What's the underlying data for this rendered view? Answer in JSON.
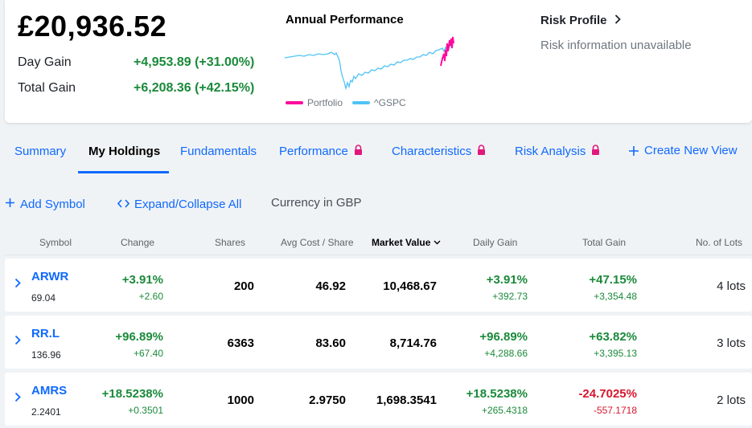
{
  "summary": {
    "total_value": "£20,936.52",
    "day_gain_label": "Day Gain",
    "day_gain_value": "+4,953.89 (+31.00%)",
    "total_gain_label": "Total Gain",
    "total_gain_value": "+6,208.36 (+42.15%)"
  },
  "performance": {
    "title": "Annual Performance",
    "legend": [
      {
        "label": "Portfolio",
        "color": "#ff0a9c"
      },
      {
        "label": "^GSPC",
        "color": "#4fc3f7"
      }
    ]
  },
  "risk": {
    "title": "Risk Profile",
    "message": "Risk information unavailable"
  },
  "tabs": [
    {
      "label": "Summary",
      "locked": false
    },
    {
      "label": "My Holdings",
      "locked": false,
      "active": true
    },
    {
      "label": "Fundamentals",
      "locked": false
    },
    {
      "label": "Performance",
      "locked": true
    },
    {
      "label": "Characteristics",
      "locked": true
    },
    {
      "label": "Risk Analysis",
      "locked": true
    },
    {
      "label": "Create New View",
      "icon": "plus-icon"
    }
  ],
  "actions": {
    "add_symbol": "Add Symbol",
    "expand_collapse": "Expand/Collapse All",
    "currency": "Currency in GBP"
  },
  "columns": {
    "symbol": "Symbol",
    "change": "Change",
    "shares": "Shares",
    "avg_cost": "Avg Cost / Share",
    "market_value": "Market Value",
    "daily_gain": "Daily Gain",
    "total_gain": "Total Gain",
    "lots": "No. of Lots"
  },
  "holdings": [
    {
      "symbol": "ARWR",
      "price": "69.04",
      "change_pct": "+3.91%",
      "change_abs": "+2.60",
      "shares": "200",
      "avg_cost": "46.92",
      "market_value": "10,468.67",
      "daily_gain_pct": "+3.91%",
      "daily_gain_abs": "+392.73",
      "total_gain_pct": "+47.15%",
      "total_gain_abs": "+3,354.48",
      "lots": "4 lots"
    },
    {
      "symbol": "RR.L",
      "price": "136.96",
      "change_pct": "+96.89%",
      "change_abs": "+67.40",
      "shares": "6363",
      "avg_cost": "83.60",
      "market_value": "8,714.76",
      "daily_gain_pct": "+96.89%",
      "daily_gain_abs": "+4,288.66",
      "total_gain_pct": "+63.82%",
      "total_gain_abs": "+3,395.13",
      "lots": "3 lots"
    },
    {
      "symbol": "AMRS",
      "price": "2.2401",
      "change_pct": "+18.5238%",
      "change_abs": "+0.3501",
      "shares": "1000",
      "avg_cost": "2.9750",
      "market_value": "1,698.3541",
      "daily_gain_pct": "+18.5238%",
      "daily_gain_abs": "+265.4318",
      "total_gain_pct": "-24.7025%",
      "total_gain_abs": "-557.1718",
      "lots": "2 lots"
    }
  ]
}
